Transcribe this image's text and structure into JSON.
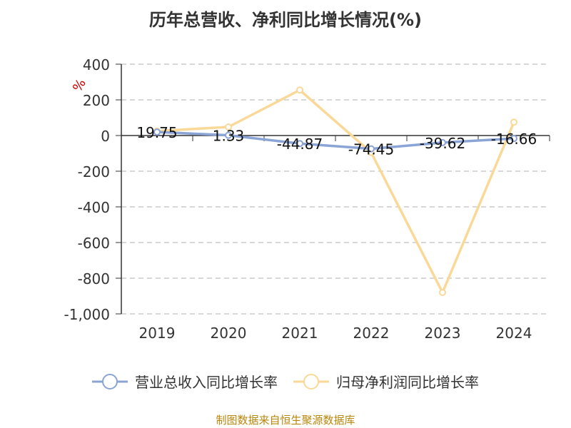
{
  "title": "历年总营收、净利同比增长情况(%)",
  "source": "制图数据来自恒生聚源数据库",
  "colors": {
    "revenue": "#8ba4d6",
    "profit": "#fad998",
    "axis": "#333333",
    "grid": "#cccccc",
    "unit": "#cc0000"
  },
  "chart_data": {
    "type": "line",
    "unit_label": "%",
    "categories": [
      "2019",
      "2020",
      "2021",
      "2022",
      "2023",
      "2024"
    ],
    "ylim": [
      -1000,
      400
    ],
    "yticks": [
      400,
      200,
      0,
      -200,
      -400,
      -600,
      -800,
      -1000
    ],
    "ytick_labels": [
      "400",
      "200",
      "0",
      "-200",
      "-400",
      "-600",
      "-800",
      "-1,000"
    ],
    "grid": true,
    "legend_position": "bottom",
    "series": [
      {
        "name": "营业总收入同比增长率",
        "values": [
          19.75,
          1.33,
          -44.87,
          -74.45,
          -39.62,
          -16.66
        ],
        "labels": [
          "19.75",
          "1.33",
          "-44.87",
          "-74.45",
          "-39.62",
          "-16.66"
        ]
      },
      {
        "name": "归母净利润同比增长率",
        "values": [
          25,
          48,
          255,
          -95,
          -880,
          75
        ]
      }
    ]
  }
}
